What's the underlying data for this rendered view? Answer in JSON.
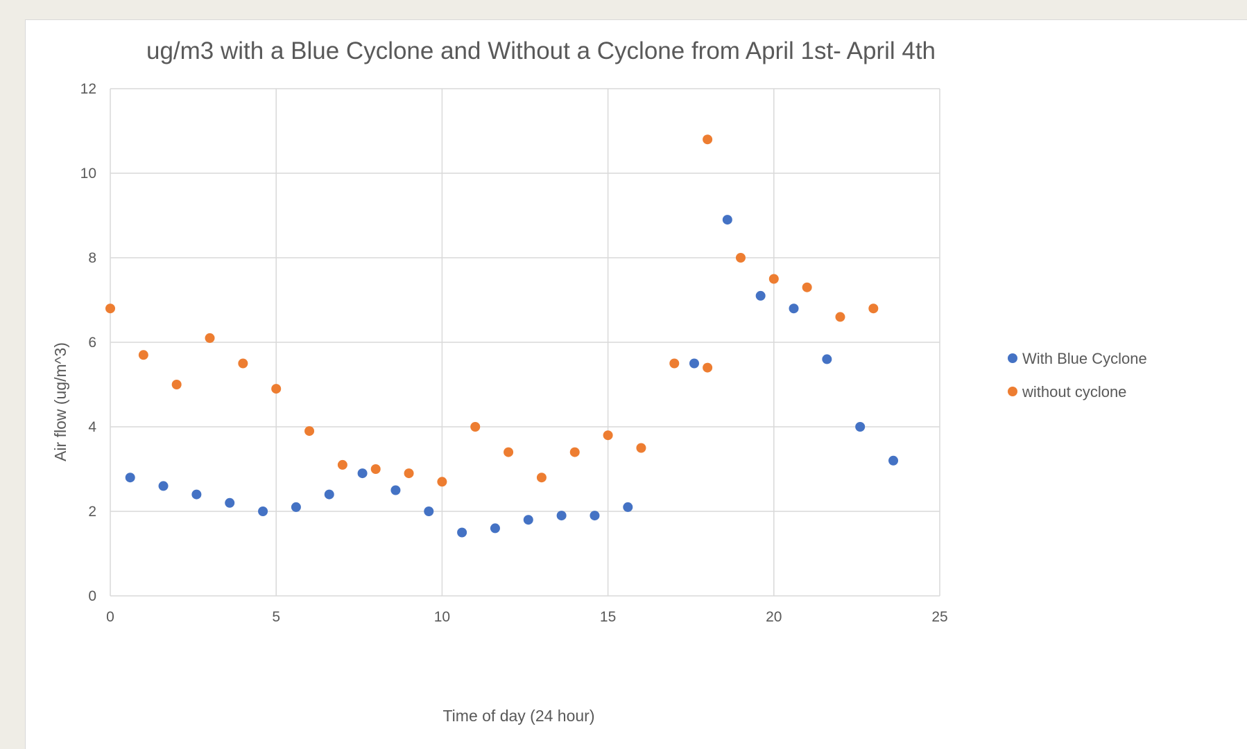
{
  "chart_data": {
    "type": "scatter",
    "title": "ug/m3 with a Blue Cyclone and Without a Cyclone from April 1st- April 4th",
    "xlabel": "Time of day (24 hour)",
    "ylabel": "Air flow (ug/m^3)",
    "xlim": [
      0,
      25
    ],
    "ylim": [
      0,
      12
    ],
    "xticks": [
      0,
      5,
      10,
      15,
      20,
      25
    ],
    "yticks": [
      0,
      2,
      4,
      6,
      8,
      10,
      12
    ],
    "grid": true,
    "legend_position": "right",
    "series": [
      {
        "name": "With Blue Cyclone",
        "color": "#4472c4",
        "points": [
          [
            0.6,
            2.8
          ],
          [
            1.6,
            2.6
          ],
          [
            2.6,
            2.4
          ],
          [
            3.6,
            2.2
          ],
          [
            4.6,
            2.0
          ],
          [
            5.6,
            2.1
          ],
          [
            6.6,
            2.4
          ],
          [
            7.6,
            2.9
          ],
          [
            8.6,
            2.5
          ],
          [
            9.6,
            2.0
          ],
          [
            10.6,
            1.5
          ],
          [
            11.6,
            1.6
          ],
          [
            12.6,
            1.8
          ],
          [
            13.6,
            1.9
          ],
          [
            14.6,
            1.9
          ],
          [
            15.6,
            2.1
          ],
          [
            17.6,
            5.5
          ],
          [
            18.6,
            8.9
          ],
          [
            19.6,
            7.1
          ],
          [
            20.6,
            6.8
          ],
          [
            21.6,
            5.6
          ],
          [
            22.6,
            4.0
          ],
          [
            23.6,
            3.2
          ]
        ]
      },
      {
        "name": "without cyclone",
        "color": "#ed7d31",
        "points": [
          [
            0,
            6.8
          ],
          [
            1,
            5.7
          ],
          [
            2,
            5.0
          ],
          [
            3,
            6.1
          ],
          [
            4,
            5.5
          ],
          [
            5,
            4.9
          ],
          [
            6,
            3.9
          ],
          [
            7,
            3.1
          ],
          [
            8,
            3.0
          ],
          [
            9,
            2.9
          ],
          [
            10,
            2.7
          ],
          [
            11,
            4.0
          ],
          [
            12,
            3.4
          ],
          [
            13,
            2.8
          ],
          [
            14,
            3.4
          ],
          [
            15,
            3.8
          ],
          [
            16,
            3.5
          ],
          [
            17,
            5.5
          ],
          [
            18,
            5.4
          ],
          [
            18,
            10.8
          ],
          [
            19,
            8.0
          ],
          [
            20,
            7.5
          ],
          [
            21,
            7.3
          ],
          [
            22,
            6.6
          ],
          [
            23,
            6.8
          ]
        ]
      }
    ]
  }
}
